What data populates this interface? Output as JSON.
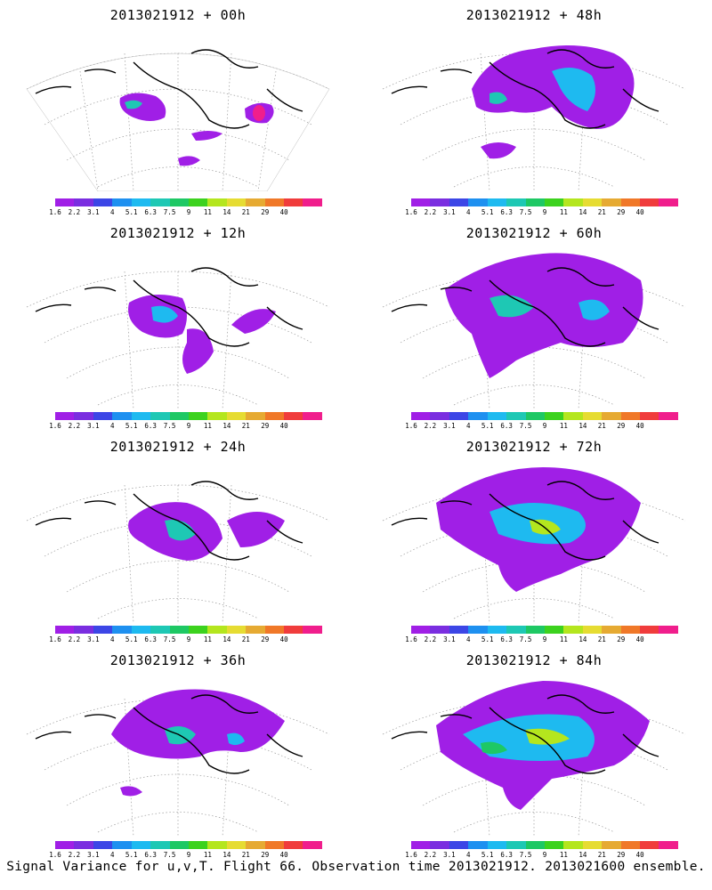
{
  "caption": "Signal Variance for u,v,T. Flight 66. Observation time 2013021912. 2013021600 ensemble.",
  "colorbar": {
    "labels": [
      "1.6",
      "2.2",
      "3.1",
      "4",
      "5.1",
      "6.3",
      "7.5",
      "9",
      "11",
      "14",
      "21",
      "29",
      "40"
    ],
    "colors": [
      "#a01fe6",
      "#7a2ee0",
      "#3c46e6",
      "#1e90f0",
      "#1ebaf0",
      "#1ec8b4",
      "#1ec864",
      "#3cd21e",
      "#b4e61e",
      "#e6dc32",
      "#e6aa32",
      "#f07828",
      "#f03c3c",
      "#f01e8c"
    ]
  },
  "panels": [
    {
      "title": "2013021912 + 00h"
    },
    {
      "title": "2013021912 + 48h"
    },
    {
      "title": "2013021912 + 12h"
    },
    {
      "title": "2013021912 + 60h"
    },
    {
      "title": "2013021912 + 24h"
    },
    {
      "title": "2013021912 + 72h"
    },
    {
      "title": "2013021912 + 36h"
    },
    {
      "title": "2013021912 + 84h"
    }
  ]
}
